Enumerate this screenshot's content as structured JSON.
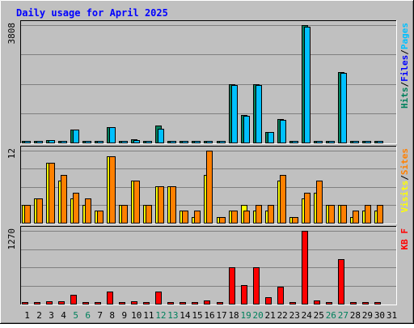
{
  "chart_data": {
    "type": "bar",
    "title": "Daily usage for April 2025",
    "categories": [
      "1",
      "2",
      "3",
      "4",
      "5",
      "6",
      "7",
      "8",
      "9",
      "10",
      "11",
      "12",
      "13",
      "14",
      "15",
      "16",
      "17",
      "18",
      "19",
      "20",
      "21",
      "22",
      "23",
      "24",
      "25",
      "26",
      "27",
      "28",
      "29",
      "30",
      "31"
    ],
    "weekend_days": [
      5,
      6,
      12,
      13,
      19,
      20,
      26,
      27
    ],
    "colors": {
      "background": "#c0c0c0",
      "plot_bg": "#c0c0c0",
      "title": "#0000ff",
      "hits": "#00805c",
      "files": "#0000ff",
      "pages": "#00c0ff",
      "visits": "#ffff00",
      "sites": "#ff8000",
      "kbytes": "#ff0000",
      "weekend_label": "#00805c",
      "weekday_label": "#000000"
    },
    "panels": [
      {
        "id": "hits-files-pages",
        "ymax_label": "3808",
        "ymax": 3808,
        "legend": [
          {
            "text": "Hits",
            "color": "#00805c"
          },
          {
            "text": "/",
            "color": "#000000"
          },
          {
            "text": "Files",
            "color": "#0000ff"
          },
          {
            "text": "/",
            "color": "#000000"
          },
          {
            "text": "Pages",
            "color": "#00c0ff"
          }
        ],
        "series": [
          {
            "name": "Hits",
            "color": "#00805c",
            "values": [
              40,
              40,
              90,
              50,
              430,
              40,
              40,
              500,
              60,
              100,
              50,
              560,
              40,
              40,
              40,
              50,
              40,
              1890,
              900,
              1890,
              340,
              760,
              40,
              3808,
              40,
              40,
              2280,
              40,
              50,
              40,
              0
            ]
          },
          {
            "name": "Pages",
            "color": "#00c0ff",
            "values": [
              30,
              30,
              80,
              30,
              410,
              30,
              30,
              490,
              40,
              90,
              40,
              450,
              30,
              30,
              30,
              30,
              30,
              1860,
              870,
              1860,
              330,
              740,
              30,
              3760,
              30,
              30,
              2270,
              30,
              40,
              30,
              0
            ]
          }
        ]
      },
      {
        "id": "visits-sites",
        "ymax_label": "12",
        "ymax": 12,
        "legend": [
          {
            "text": "Visits",
            "color": "#ffff00"
          },
          {
            "text": "/",
            "color": "#000000"
          },
          {
            "text": "Sites",
            "color": "#ff8000"
          }
        ],
        "series": [
          {
            "name": "Visits",
            "color": "#ffff00",
            "values": [
              3,
              4,
              10,
              7,
              4,
              3,
              2,
              11,
              3,
              7,
              3,
              6,
              6,
              2,
              1,
              8,
              1,
              2,
              3,
              2,
              2,
              7,
              1,
              4,
              5,
              3,
              3,
              1,
              2,
              2,
              0
            ]
          },
          {
            "name": "Sites",
            "color": "#ff8000",
            "values": [
              3,
              4,
              10,
              8,
              5,
              4,
              2,
              11,
              3,
              7,
              3,
              6,
              6,
              2,
              2,
              12,
              1,
              2,
              2,
              3,
              3,
              8,
              1,
              5,
              7,
              3,
              3,
              2,
              3,
              3,
              0
            ]
          }
        ]
      },
      {
        "id": "kbytes",
        "ymax_label": "1270",
        "ymax": 1270,
        "legend": [
          {
            "text": "KB F",
            "color": "#ff0000"
          }
        ],
        "series": [
          {
            "name": "KB F",
            "color": "#ff0000",
            "values": [
              30,
              20,
              40,
              40,
              150,
              20,
              20,
              210,
              30,
              40,
              30,
              210,
              30,
              30,
              30,
              60,
              20,
              630,
              320,
              630,
              110,
              290,
              20,
              1270,
              50,
              20,
              770,
              20,
              30,
              20,
              0
            ]
          }
        ]
      }
    ]
  }
}
